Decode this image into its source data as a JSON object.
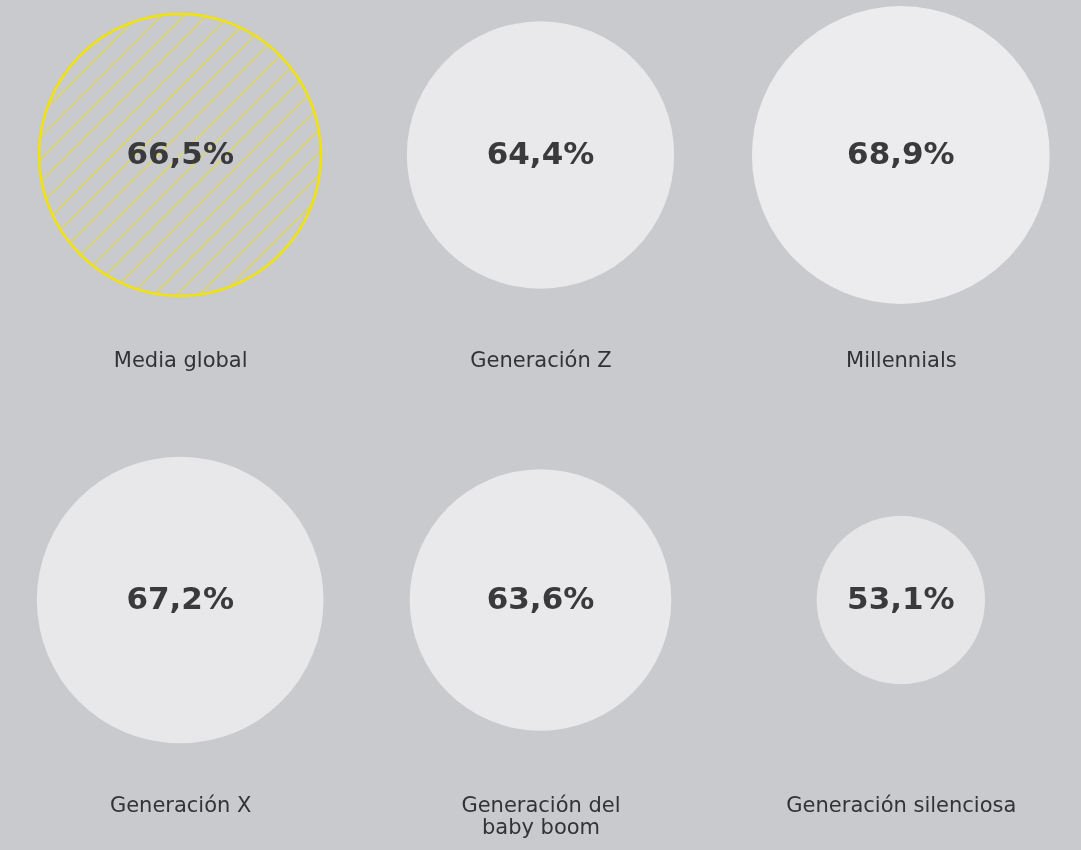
{
  "chart_data": [
    {
      "type": "other",
      "categories": [
        "Media global",
        "Generación Z",
        "Millennials"
      ],
      "values": [
        66.5,
        64.4,
        68.9
      ],
      "value_labels": [
        "66,5%",
        "64,4%",
        "68,9%"
      ],
      "colors": [
        "#f2e300",
        "#e9e9eb",
        "#ececee"
      ]
    },
    {
      "type": "other",
      "categories": [
        "Generación X",
        "Generación del\nbaby boom",
        "Generación silenciosa"
      ],
      "values": [
        67.2,
        63.6,
        53.1
      ],
      "value_labels": [
        "67,2%",
        "63,6%",
        "53,1%"
      ],
      "colors": [
        "#e8e8ea",
        "#e9e9eb",
        "#e6e6e8"
      ]
    }
  ]
}
